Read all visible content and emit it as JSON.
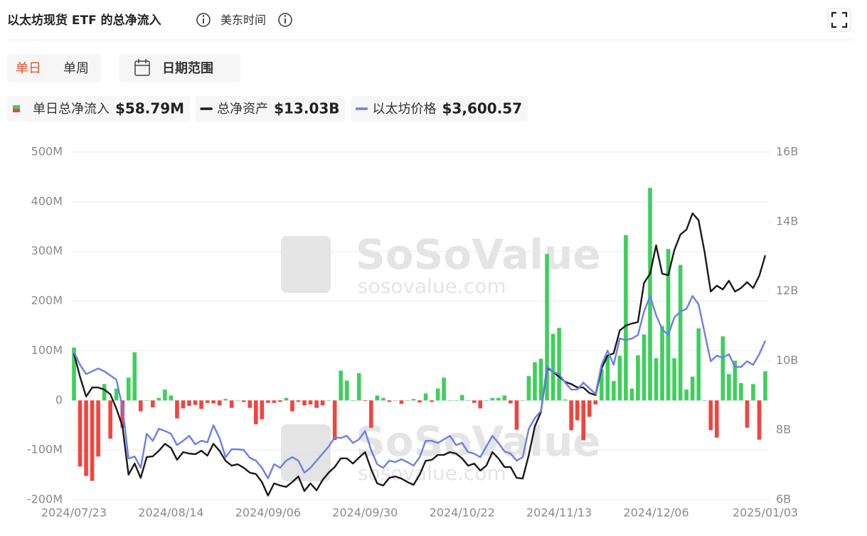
{
  "timezone": "美东时间",
  "controls": {
    "periods": [
      "单日",
      "单周"
    ],
    "date_range": "日期范围"
  },
  "chart_data": {
    "type": "bar-line",
    "title": "以太坊现货 ETF 的总净流入",
    "watermark": "SoSoValue",
    "watermark_url": "sosovalue.com",
    "categories": [
      "2024/07/23",
      null,
      null,
      null,
      null,
      null,
      null,
      null,
      null,
      null,
      null,
      null,
      null,
      null,
      null,
      null,
      "2024/08/14",
      null,
      null,
      null,
      null,
      null,
      null,
      null,
      null,
      null,
      null,
      null,
      null,
      null,
      null,
      null,
      "2024/09/06",
      null,
      null,
      null,
      null,
      null,
      null,
      null,
      null,
      null,
      null,
      null,
      null,
      null,
      null,
      null,
      "2024/09/30",
      null,
      null,
      null,
      null,
      null,
      null,
      null,
      null,
      null,
      null,
      null,
      null,
      null,
      null,
      null,
      "2024/10/22",
      null,
      null,
      null,
      null,
      null,
      null,
      null,
      null,
      null,
      null,
      null,
      null,
      null,
      null,
      null,
      "2024/11/13",
      null,
      null,
      null,
      null,
      null,
      null,
      null,
      null,
      null,
      null,
      null,
      null,
      null,
      null,
      null,
      "2024/12/06",
      null,
      null,
      null,
      null,
      null,
      null,
      null,
      null,
      null,
      null,
      null,
      null,
      null,
      null,
      null,
      null,
      null,
      "2025/01/03"
    ],
    "series": [
      {
        "name": "单日总净流入",
        "legend_value": "$58.79M",
        "kind": "bar",
        "axis": "y",
        "color": "#3ecf5c",
        "negative_color": "#f2443e",
        "values": [
          106.6,
          -133,
          -152,
          -162,
          -113,
          33,
          -77,
          24,
          -55,
          46,
          97,
          -22,
          0,
          -14,
          5,
          22,
          10,
          -36,
          -16,
          -11,
          -9,
          -17,
          -5,
          -6,
          -10,
          3,
          -15,
          0,
          -3,
          -15,
          -48,
          -38,
          -5,
          -5,
          -3,
          5,
          -22,
          -3,
          -10,
          -8,
          -15,
          -10,
          0,
          -80,
          60,
          40,
          0,
          55,
          -1,
          -55,
          10,
          5,
          -3,
          0,
          -7,
          0,
          3,
          -4,
          14,
          -3,
          24,
          46,
          0,
          0,
          11,
          0,
          -5,
          -16,
          0,
          5,
          5,
          10,
          -6,
          -59,
          0,
          49,
          77,
          84,
          295,
          134,
          146,
          2,
          -60,
          -40,
          -80,
          -33,
          -8,
          63,
          90,
          39,
          90,
          333,
          24,
          91,
          133,
          428,
          85,
          150,
          305,
          85,
          273,
          22,
          48,
          145,
          0,
          -60,
          -75,
          129,
          53,
          80,
          35,
          -55,
          33,
          -79,
          58.79
        ]
      },
      {
        "name": "总净资产",
        "legend_value": "$13.03B",
        "kind": "line",
        "axis": "y2",
        "color": "#1a1a1a",
        "values": [
          10.21,
          9.54,
          8.97,
          9.23,
          9.23,
          9.17,
          9.03,
          8.62,
          8.11,
          6.72,
          7.04,
          6.63,
          7.23,
          7.25,
          7.41,
          7.61,
          7.49,
          7.15,
          7.37,
          7.33,
          7.31,
          7.41,
          7.27,
          7.61,
          7.41,
          7.12,
          6.98,
          7.02,
          6.92,
          6.78,
          6.74,
          6.51,
          6.12,
          6.47,
          6.41,
          6.37,
          6.51,
          6.67,
          6.25,
          6.47,
          6.27,
          6.57,
          6.78,
          6.94,
          7.19,
          7.19,
          7.04,
          7.21,
          7.37,
          6.88,
          6.47,
          6.41,
          6.63,
          6.67,
          6.61,
          6.51,
          6.43,
          6.72,
          7.12,
          7.15,
          7.29,
          7.29,
          7.37,
          7.33,
          7.19,
          6.98,
          7.04,
          6.84,
          6.98,
          7.37,
          7.19,
          6.94,
          6.94,
          6.63,
          6.61,
          7.29,
          8.11,
          8.52,
          9.8,
          9.68,
          9.54,
          9.39,
          9.33,
          9.23,
          9.23,
          9.07,
          9.01,
          9.78,
          10.15,
          10.21,
          10.87,
          11.01,
          11.07,
          11.11,
          12.24,
          12.5,
          13.32,
          12.5,
          12.46,
          13.18,
          13.63,
          13.77,
          14.24,
          14.04,
          13.12,
          11.99,
          12.16,
          12.05,
          12.3,
          11.99,
          12.09,
          12.26,
          12.09,
          12.44,
          13.03
        ]
      },
      {
        "name": "以太坊价格",
        "legend_value": "$3,600.57",
        "kind": "line",
        "axis": "y3",
        "color": "#6b7fe8",
        "values": [
          3500,
          3388,
          3306,
          3331,
          3356,
          3331,
          3294,
          3256,
          3013,
          2563,
          2581,
          2481,
          2781,
          2719,
          2825,
          2806,
          2781,
          2681,
          2719,
          2763,
          2688,
          2719,
          2706,
          2856,
          2744,
          2575,
          2644,
          2644,
          2638,
          2569,
          2544,
          2481,
          2388,
          2513,
          2481,
          2544,
          2575,
          2544,
          2438,
          2481,
          2544,
          2606,
          2669,
          2750,
          2744,
          2763,
          2700,
          2731,
          2806,
          2638,
          2513,
          2481,
          2544,
          2531,
          2556,
          2531,
          2500,
          2575,
          2719,
          2719,
          2700,
          2731,
          2763,
          2681,
          2700,
          2619,
          2606,
          2575,
          2669,
          2763,
          2700,
          2625,
          2606,
          2544,
          2575,
          2825,
          2919,
          2981,
          3375,
          3325,
          3306,
          3231,
          3169,
          3169,
          3231,
          3181,
          3131,
          3388,
          3513,
          3388,
          3619,
          3606,
          3619,
          3650,
          3856,
          3994,
          3825,
          3700,
          3650,
          3806,
          3856,
          3881,
          3994,
          3919,
          3669,
          3419,
          3469,
          3450,
          3481,
          3369,
          3369,
          3419,
          3388,
          3481,
          3600.57
        ]
      }
    ],
    "ylim": [
      -200,
      500
    ],
    "yticks": [
      {
        "value": -200,
        "label": "-200M"
      },
      {
        "value": -100,
        "label": "-100M"
      },
      0,
      {
        "value": 100,
        "label": "100M"
      },
      {
        "value": 200,
        "label": "200M"
      },
      {
        "value": 300,
        "label": "300M"
      },
      {
        "value": 400,
        "label": "400M"
      },
      {
        "value": 500,
        "label": "500M"
      }
    ],
    "y2lim": [
      6,
      16
    ],
    "y2ticks": [
      {
        "value": 6,
        "label": "6B"
      },
      {
        "value": 8,
        "label": "8B"
      },
      {
        "value": 10,
        "label": "10B"
      },
      {
        "value": 12,
        "label": "12B"
      },
      {
        "value": 14,
        "label": "14B"
      },
      {
        "value": 16,
        "label": "16B"
      }
    ],
    "y3lim": [
      2200,
      5260
    ],
    "grid": true
  }
}
